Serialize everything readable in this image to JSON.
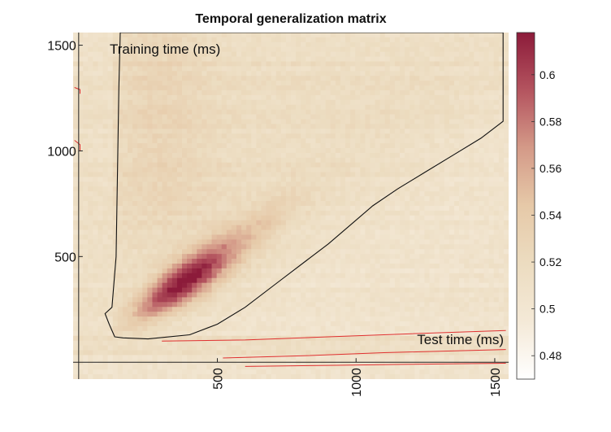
{
  "chart_data": {
    "type": "heatmap",
    "title": "Temporal generalization matrix",
    "xlabel": "Test time (ms)",
    "ylabel": "Training time (ms)",
    "xlim": [
      -20,
      1550
    ],
    "ylim": [
      -80,
      1560
    ],
    "x_ticks": [
      {
        "value": 500,
        "label": "500"
      },
      {
        "value": 1000,
        "label": "1000"
      },
      {
        "value": 1500,
        "label": "1500"
      }
    ],
    "y_ticks": [
      {
        "value": 500,
        "label": "500"
      },
      {
        "value": 1000,
        "label": "1000"
      },
      {
        "value": 1500,
        "label": "1500"
      }
    ],
    "x_tick_rotation": "vertical",
    "colorbar": {
      "position": "right",
      "range": [
        0.47,
        0.618
      ],
      "ticks": [
        {
          "value": 0.48,
          "label": "0.48"
        },
        {
          "value": 0.5,
          "label": "0.5"
        },
        {
          "value": 0.52,
          "label": "0.52"
        },
        {
          "value": 0.54,
          "label": "0.54"
        },
        {
          "value": 0.56,
          "label": "0.56"
        },
        {
          "value": 0.58,
          "label": "0.58"
        },
        {
          "value": 0.6,
          "label": "0.6"
        }
      ],
      "colors": [
        "#ffffff",
        "#f4e9d7",
        "#ecdcc0",
        "#e6c9a8",
        "#d49a88",
        "#b4545f",
        "#8c1b3a"
      ]
    },
    "baseline_value": 0.5,
    "diagonal_peak": {
      "time": 370,
      "value": 0.615
    },
    "diagonal_onset_time": 120,
    "significance_contours": {
      "above_chance_color": "#111111",
      "below_chance_color": "#e03030",
      "above_chance_region_vertices": [
        [
          130,
          120
        ],
        [
          160,
          115
        ],
        [
          250,
          110
        ],
        [
          400,
          130
        ],
        [
          500,
          180
        ],
        [
          600,
          260
        ],
        [
          720,
          380
        ],
        [
          820,
          480
        ],
        [
          900,
          560
        ],
        [
          980,
          650
        ],
        [
          1060,
          740
        ],
        [
          1150,
          820
        ],
        [
          1250,
          900
        ],
        [
          1350,
          980
        ],
        [
          1450,
          1060
        ],
        [
          1530,
          1140
        ],
        [
          1530,
          1560
        ],
        [
          150,
          1560
        ],
        [
          145,
          1300
        ],
        [
          140,
          900
        ],
        [
          135,
          500
        ],
        [
          120,
          260
        ],
        [
          95,
          230
        ],
        [
          110,
          180
        ]
      ]
    },
    "grid": false
  }
}
